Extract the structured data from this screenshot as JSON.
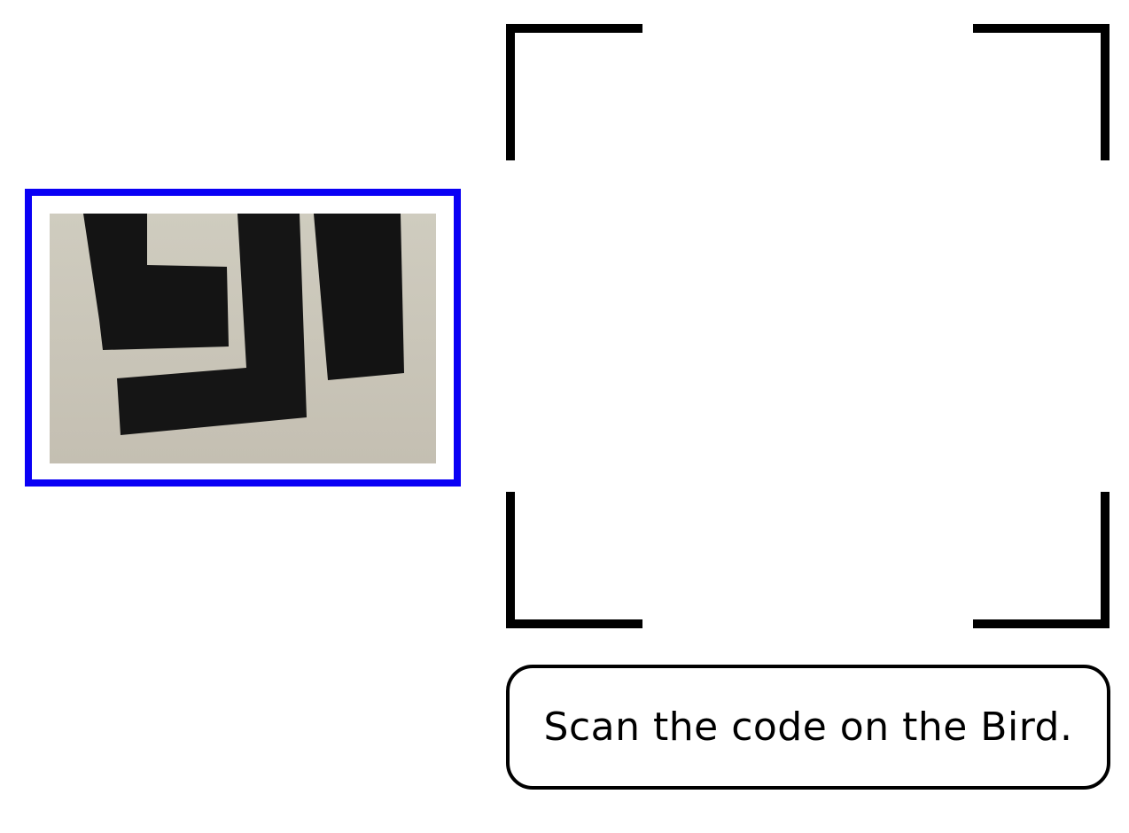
{
  "instruction": {
    "text": "Scan the code on the Bird."
  },
  "preview": {
    "icon": "captured-code-preview",
    "frame_color": "#0a00f5"
  },
  "viewfinder": {
    "icon": "scan-viewfinder-corners",
    "color": "#000000"
  }
}
